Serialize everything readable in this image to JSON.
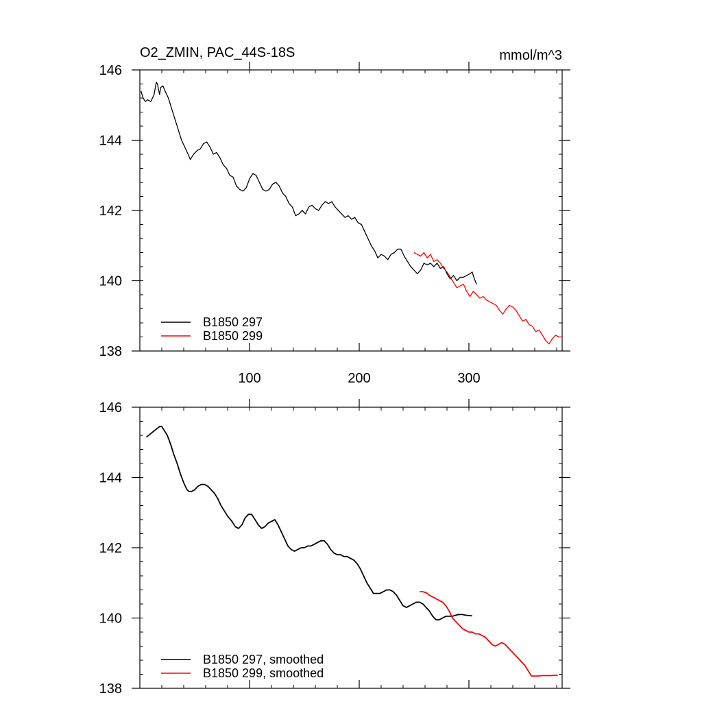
{
  "figure": {
    "title_left": "O2_ZMIN, PAC_44S-18S",
    "title_right": "mmol/m^3"
  },
  "chart_data": [
    {
      "type": "line",
      "title": "O2_ZMIN, PAC_44S-18S",
      "units": "mmol/m^3",
      "xlim": [
        0,
        385
      ],
      "ylim": [
        138,
        146
      ],
      "x_ticks": [
        100,
        200,
        300
      ],
      "x_tick_labels": [
        "100",
        "200",
        "300"
      ],
      "y_ticks": [
        138,
        140,
        142,
        144,
        146
      ],
      "y_tick_labels": [
        "138",
        "140",
        "142",
        "144",
        "146"
      ],
      "grid": false,
      "legend_position": "bottom-left",
      "series": [
        {
          "name": "B1850 297",
          "color": "#000000",
          "x": [
            1,
            3,
            5,
            7,
            10,
            13,
            15,
            16,
            18,
            19,
            21,
            23,
            26,
            29,
            32,
            35,
            38,
            41,
            44,
            46,
            49,
            52,
            55,
            58,
            61,
            64,
            67,
            70,
            73,
            76,
            79,
            82,
            85,
            88,
            91,
            94,
            97,
            100,
            103,
            106,
            109,
            112,
            115,
            118,
            121,
            124,
            127,
            130,
            133,
            136,
            139,
            142,
            145,
            148,
            151,
            154,
            157,
            160,
            163,
            166,
            169,
            172,
            175,
            178,
            181,
            184,
            187,
            190,
            193,
            196,
            199,
            202,
            205,
            208,
            211,
            214,
            217,
            220,
            223,
            226,
            229,
            232,
            235,
            238,
            241,
            244,
            247,
            250,
            253,
            256,
            259,
            262,
            265,
            268,
            271,
            274,
            277,
            280,
            283,
            286,
            289,
            292,
            295,
            298,
            301,
            303,
            305,
            307
          ],
          "y": [
            145.4,
            145.2,
            145.1,
            145.15,
            145.1,
            145.3,
            145.65,
            145.6,
            145.3,
            145.5,
            145.55,
            145.4,
            145.2,
            144.9,
            144.6,
            144.3,
            144.0,
            143.8,
            143.6,
            143.45,
            143.6,
            143.7,
            143.75,
            143.9,
            143.95,
            143.8,
            143.6,
            143.65,
            143.5,
            143.3,
            143.2,
            143.0,
            142.95,
            142.7,
            142.6,
            142.55,
            142.65,
            142.9,
            143.05,
            143.0,
            142.8,
            142.6,
            142.55,
            142.6,
            142.75,
            142.8,
            142.7,
            142.5,
            142.4,
            142.2,
            142.1,
            141.85,
            141.9,
            142.0,
            141.9,
            142.1,
            142.15,
            142.05,
            142.0,
            142.15,
            142.25,
            142.2,
            142.25,
            142.1,
            142.0,
            141.9,
            141.8,
            141.85,
            141.75,
            141.8,
            141.65,
            141.6,
            141.4,
            141.2,
            141.0,
            140.85,
            140.65,
            140.75,
            140.7,
            140.6,
            140.75,
            140.8,
            140.9,
            140.9,
            140.7,
            140.55,
            140.4,
            140.3,
            140.2,
            140.3,
            140.5,
            140.45,
            140.5,
            140.4,
            140.5,
            140.35,
            140.4,
            140.2,
            140.05,
            140.15,
            140.0,
            140.1,
            140.1,
            140.15,
            140.2,
            140.25,
            140.05,
            139.9
          ]
        },
        {
          "name": "B1850 299",
          "color": "#ff0000",
          "x": [
            250,
            253,
            256,
            259,
            262,
            265,
            268,
            271,
            274,
            277,
            280,
            283,
            286,
            289,
            292,
            295,
            298,
            301,
            304,
            307,
            310,
            313,
            316,
            319,
            322,
            325,
            328,
            331,
            334,
            337,
            340,
            343,
            346,
            349,
            352,
            355,
            358,
            361,
            364,
            367,
            370,
            373,
            376,
            379,
            382,
            385
          ],
          "y": [
            140.8,
            140.75,
            140.7,
            140.8,
            140.65,
            140.75,
            140.55,
            140.6,
            140.5,
            140.35,
            140.25,
            140.1,
            139.95,
            139.8,
            139.85,
            139.9,
            139.7,
            139.55,
            139.7,
            139.6,
            139.5,
            139.55,
            139.45,
            139.4,
            139.35,
            139.3,
            139.15,
            139.05,
            139.2,
            139.3,
            139.25,
            139.15,
            139.0,
            138.85,
            138.9,
            138.75,
            138.7,
            138.55,
            138.6,
            138.45,
            138.3,
            138.2,
            138.35,
            138.45,
            138.4,
            138.4
          ]
        }
      ]
    },
    {
      "type": "line",
      "xlim": [
        0,
        385
      ],
      "ylim": [
        138,
        146
      ],
      "x_ticks": [
        100,
        200,
        300
      ],
      "y_ticks": [
        138,
        140,
        142,
        144,
        146
      ],
      "y_tick_labels": [
        "138",
        "140",
        "142",
        "144",
        "146"
      ],
      "grid": false,
      "legend_position": "bottom-left",
      "series": [
        {
          "name": "B1850 297, smoothed",
          "color": "#000000",
          "x": [
            6,
            10,
            14,
            18,
            20,
            22,
            25,
            28,
            31,
            34,
            37,
            40,
            43,
            45,
            47,
            50,
            53,
            56,
            59,
            62,
            65,
            68,
            71,
            74,
            77,
            80,
            84,
            87,
            90,
            93,
            96,
            99,
            102,
            105,
            108,
            111,
            114,
            117,
            120,
            123,
            126,
            129,
            132,
            135,
            138,
            141,
            144,
            147,
            150,
            153,
            156,
            159,
            162,
            165,
            168,
            171,
            174,
            177,
            180,
            183,
            186,
            189,
            192,
            195,
            198,
            201,
            204,
            207,
            210,
            213,
            216,
            219,
            222,
            225,
            228,
            231,
            234,
            237,
            240,
            243,
            246,
            249,
            252,
            255,
            258,
            261,
            264,
            267,
            270,
            273,
            276,
            279,
            282,
            285,
            288,
            291,
            294,
            297,
            300,
            303
          ],
          "y": [
            145.15,
            145.25,
            145.35,
            145.45,
            145.45,
            145.35,
            145.2,
            144.95,
            144.65,
            144.4,
            144.1,
            143.85,
            143.65,
            143.6,
            143.6,
            143.65,
            143.75,
            143.8,
            143.8,
            143.75,
            143.65,
            143.55,
            143.4,
            143.2,
            143.05,
            142.9,
            142.75,
            142.6,
            142.55,
            142.65,
            142.85,
            142.95,
            142.95,
            142.8,
            142.65,
            142.55,
            142.6,
            142.7,
            142.75,
            142.8,
            142.65,
            142.45,
            142.25,
            142.05,
            141.95,
            141.9,
            141.95,
            142.0,
            142.0,
            142.05,
            142.05,
            142.1,
            142.15,
            142.2,
            142.2,
            142.1,
            141.95,
            141.85,
            141.8,
            141.8,
            141.75,
            141.75,
            141.7,
            141.65,
            141.55,
            141.4,
            141.2,
            141.0,
            140.85,
            140.7,
            140.7,
            140.7,
            140.75,
            140.8,
            140.8,
            140.75,
            140.65,
            140.5,
            140.35,
            140.3,
            140.35,
            140.4,
            140.45,
            140.45,
            140.4,
            140.3,
            140.2,
            140.05,
            139.95,
            139.95,
            140.0,
            140.05,
            140.05,
            140.05,
            140.08,
            140.1,
            140.1,
            140.08,
            140.07,
            140.06
          ]
        },
        {
          "name": "B1850 299, smoothed",
          "color": "#ff0000",
          "x": [
            255,
            258,
            261,
            264,
            267,
            270,
            273,
            276,
            279,
            282,
            285,
            288,
            291,
            294,
            297,
            300,
            303,
            306,
            309,
            312,
            315,
            318,
            321,
            324,
            327,
            330,
            333,
            336,
            339,
            342,
            345,
            348,
            351,
            354,
            357,
            360,
            363,
            366,
            369,
            372,
            375,
            378,
            381
          ],
          "y": [
            140.75,
            140.75,
            140.72,
            140.65,
            140.6,
            140.55,
            140.5,
            140.45,
            140.35,
            140.2,
            140.0,
            139.9,
            139.8,
            139.7,
            139.65,
            139.6,
            139.6,
            139.55,
            139.55,
            139.5,
            139.45,
            139.35,
            139.25,
            139.2,
            139.25,
            139.3,
            139.25,
            139.15,
            139.05,
            138.95,
            138.85,
            138.75,
            138.65,
            138.5,
            138.35,
            138.35,
            138.35,
            138.36,
            138.36,
            138.36,
            138.36,
            138.37,
            138.37
          ]
        }
      ]
    }
  ]
}
